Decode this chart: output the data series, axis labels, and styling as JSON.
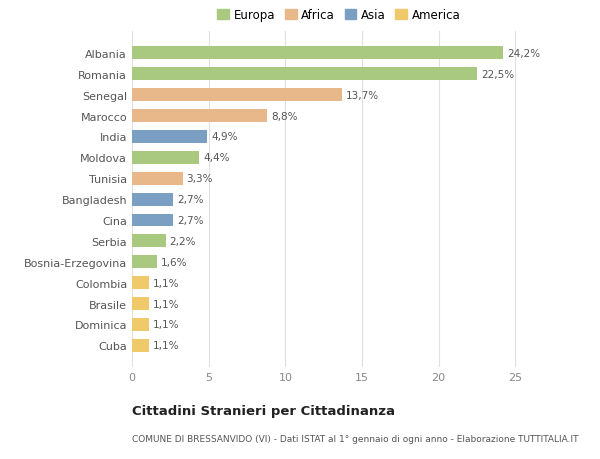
{
  "countries": [
    "Albania",
    "Romania",
    "Senegal",
    "Marocco",
    "India",
    "Moldova",
    "Tunisia",
    "Bangladesh",
    "Cina",
    "Serbia",
    "Bosnia-Erzegovina",
    "Colombia",
    "Brasile",
    "Dominica",
    "Cuba"
  ],
  "values": [
    24.2,
    22.5,
    13.7,
    8.8,
    4.9,
    4.4,
    3.3,
    2.7,
    2.7,
    2.2,
    1.6,
    1.1,
    1.1,
    1.1,
    1.1
  ],
  "labels": [
    "24,2%",
    "22,5%",
    "13,7%",
    "8,8%",
    "4,9%",
    "4,4%",
    "3,3%",
    "2,7%",
    "2,7%",
    "2,2%",
    "1,6%",
    "1,1%",
    "1,1%",
    "1,1%",
    "1,1%"
  ],
  "continents": [
    "Europa",
    "Europa",
    "Africa",
    "Africa",
    "Asia",
    "Europa",
    "Africa",
    "Asia",
    "Asia",
    "Europa",
    "Europa",
    "America",
    "America",
    "America",
    "America"
  ],
  "colors": {
    "Europa": "#a8c97f",
    "Africa": "#e8b88a",
    "Asia": "#7a9fc2",
    "America": "#f0c96a"
  },
  "legend_order": [
    "Europa",
    "Africa",
    "Asia",
    "America"
  ],
  "title": "Cittadini Stranieri per Cittadinanza",
  "subtitle": "COMUNE DI BRESSANVIDO (VI) - Dati ISTAT al 1° gennaio di ogni anno - Elaborazione TUTTITALIA.IT",
  "xlim": [
    0,
    27
  ],
  "xticks": [
    0,
    5,
    10,
    15,
    20,
    25
  ],
  "bg_color": "#ffffff",
  "grid_color": "#e0e0e0",
  "bar_height": 0.62
}
